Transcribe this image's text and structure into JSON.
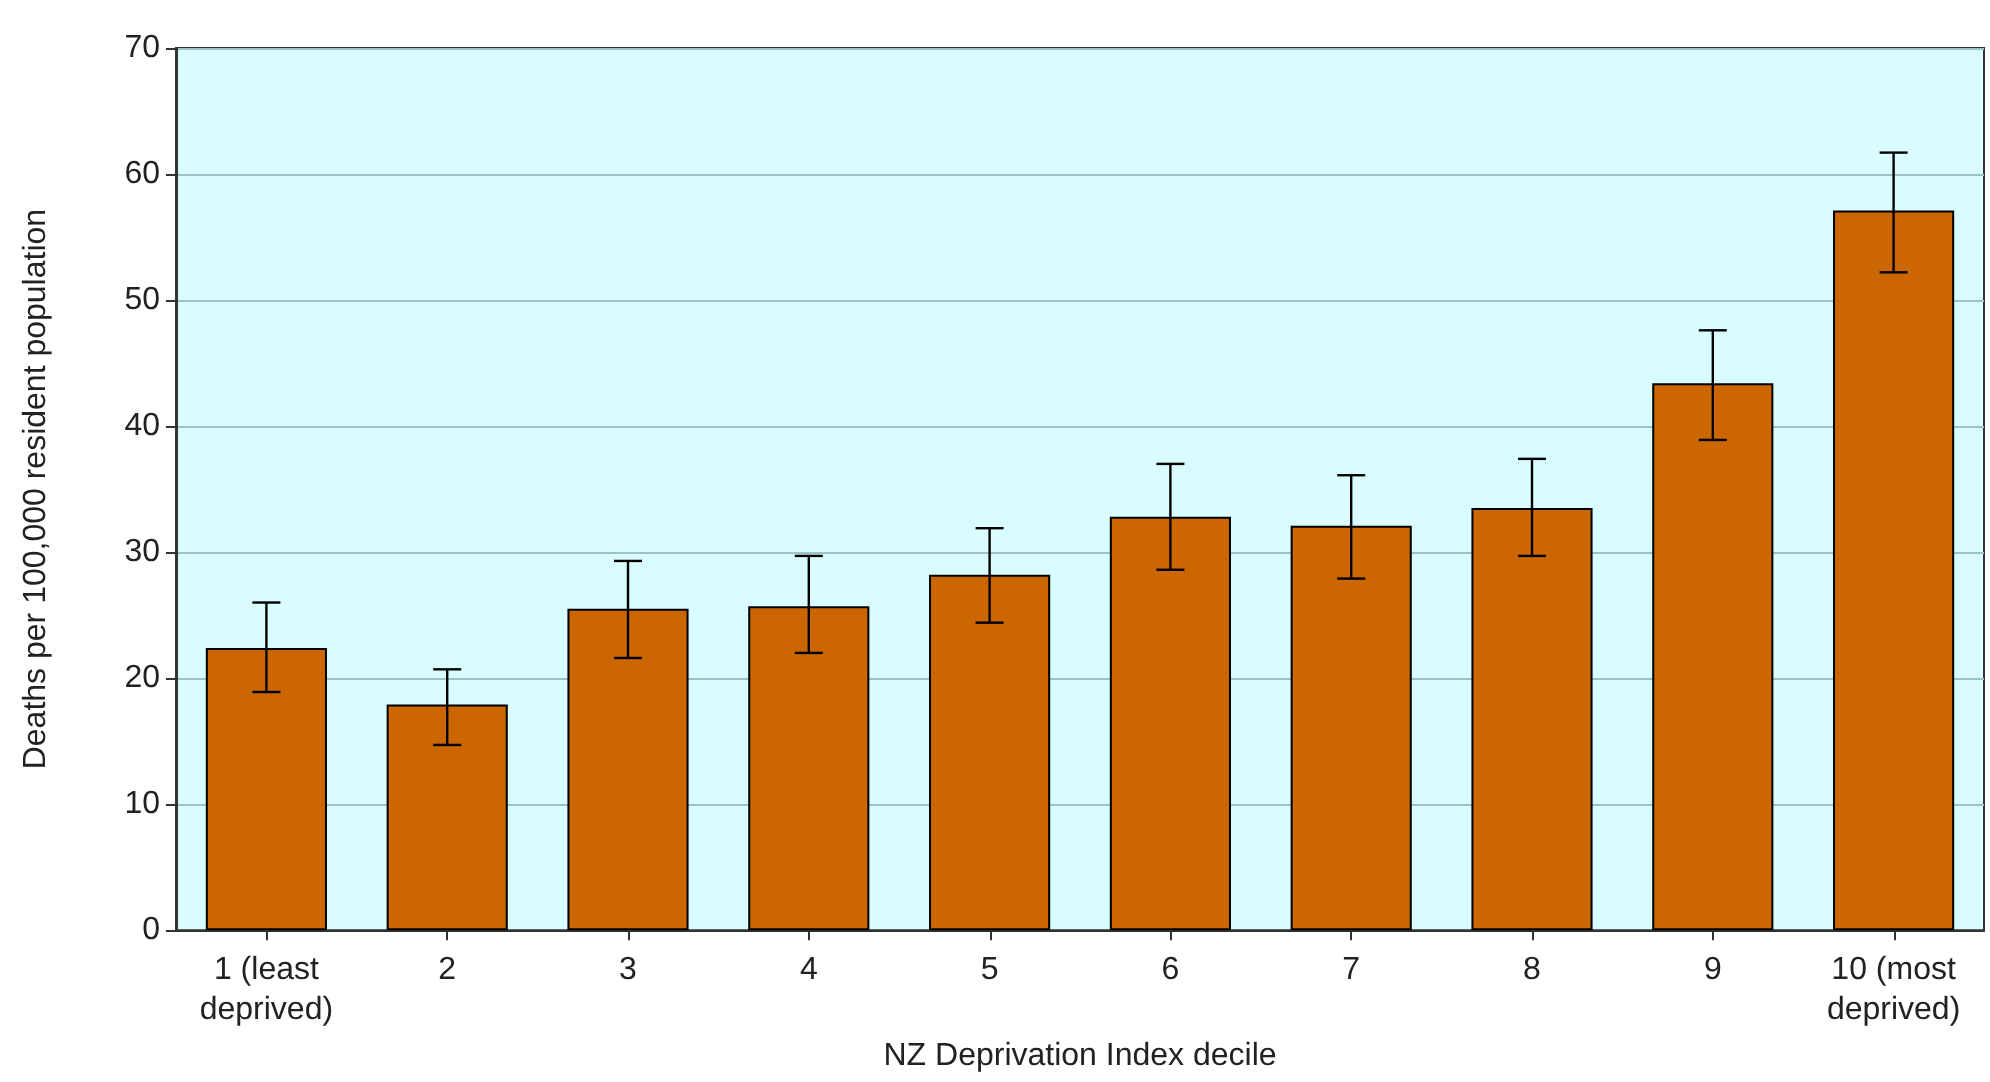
{
  "chart_data": {
    "type": "bar",
    "xlabel": "NZ Deprivation Index decile",
    "ylabel": "Deaths per 100,000 resident population",
    "categories": [
      "1 (least\ndeprived)",
      "2",
      "3",
      "4",
      "5",
      "6",
      "7",
      "8",
      "9",
      "10 (most\ndeprived)"
    ],
    "values": [
      22.4,
      17.9,
      25.5,
      25.7,
      28.2,
      32.8,
      32.1,
      33.5,
      43.4,
      57.1
    ],
    "errors": [
      [
        18.9,
        26.0
      ],
      [
        14.7,
        20.7
      ],
      [
        21.6,
        29.3
      ],
      [
        22.0,
        29.7
      ],
      [
        24.4,
        31.9
      ],
      [
        28.6,
        37.0
      ],
      [
        27.9,
        36.1
      ],
      [
        29.7,
        37.4
      ],
      [
        38.9,
        47.6
      ],
      [
        52.2,
        61.7
      ]
    ],
    "color": "#cc6600",
    "ylim": [
      0,
      70
    ],
    "yticks": [
      0,
      10,
      20,
      30,
      40,
      50,
      60,
      70
    ],
    "grid": "y"
  }
}
